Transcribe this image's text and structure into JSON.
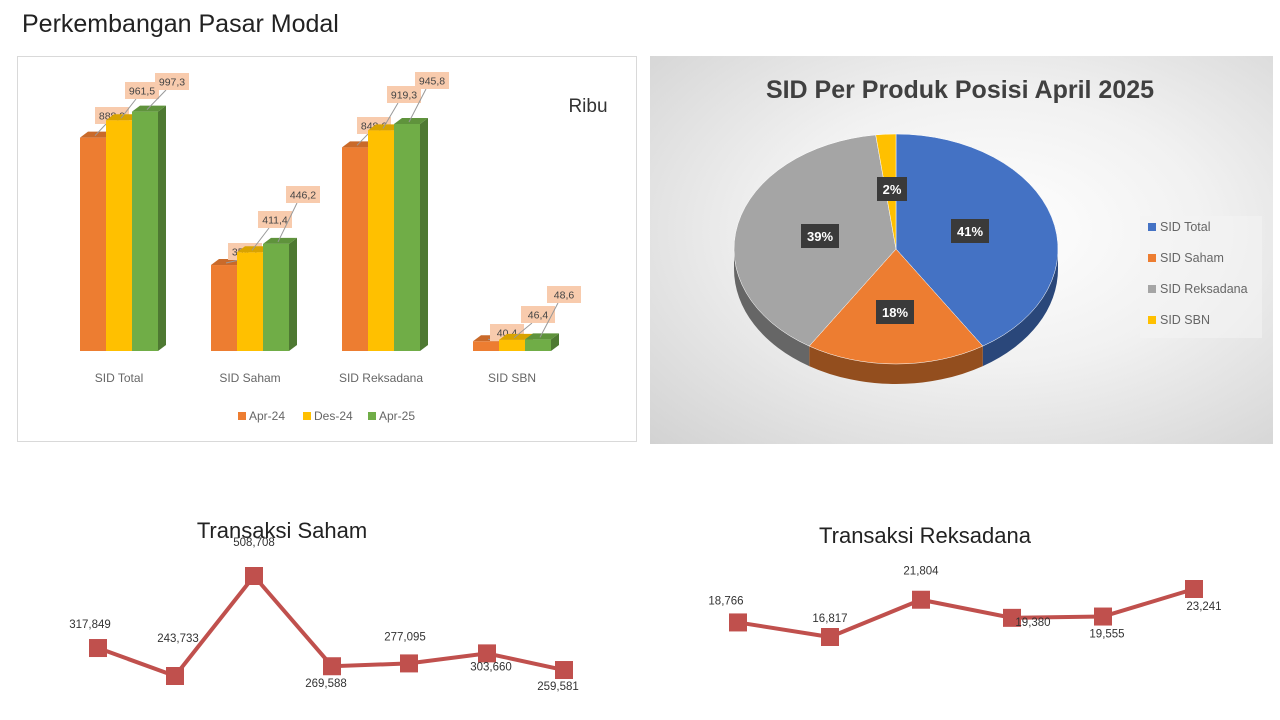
{
  "page": {
    "title": "Perkembangan Pasar Modal"
  },
  "chart_data": [
    {
      "type": "bar",
      "title": "",
      "unit_label": "Ribu",
      "categories": [
        "SID Total",
        "SID Saham",
        "SID Reksadana",
        "SID SBN"
      ],
      "series": [
        {
          "name": "Apr-24",
          "values": [
            888.9,
            358.2,
            848.6,
            40.4
          ],
          "labels": [
            "888,9",
            "358,2",
            "848,6",
            "40,4"
          ],
          "color": "#ED7D31"
        },
        {
          "name": "Des-24",
          "values": [
            961.5,
            411.4,
            919.3,
            46.4
          ],
          "labels": [
            "961,5",
            "411,4",
            "919,3",
            "46,4"
          ],
          "color": "#FFC000"
        },
        {
          "name": "Apr-25",
          "values": [
            997.3,
            446.2,
            945.8,
            48.6
          ],
          "labels": [
            "997,3",
            "446,2",
            "945,8",
            "48,6"
          ],
          "color": "#70AD47"
        }
      ],
      "ylim": [
        0,
        1000
      ],
      "legend": "bottom",
      "grid": false
    },
    {
      "type": "pie",
      "title": "SID Per Produk Posisi April 2025",
      "slices": [
        {
          "name": "SID Total",
          "value": 41,
          "label": "41%",
          "color": "#4472C4"
        },
        {
          "name": "SID Saham",
          "value": 18,
          "label": "18%",
          "color": "#ED7D31"
        },
        {
          "name": "SID Reksadana",
          "value": 39,
          "label": "39%",
          "color": "#A5A5A5"
        },
        {
          "name": "SID SBN",
          "value": 2,
          "label": "2%",
          "color": "#FFC000"
        }
      ],
      "legend": "right"
    },
    {
      "type": "line",
      "title": "Transaksi Saham",
      "values": [
        317849,
        243733,
        508708,
        269588,
        277095,
        303660,
        259581
      ],
      "labels": [
        "317,849",
        "243,733",
        "508,708",
        "269,588",
        "277,095",
        "303,660",
        "259,581"
      ],
      "color": "#C0504D",
      "grid": false
    },
    {
      "type": "line",
      "title": "Transaksi Reksadana",
      "values": [
        18766,
        16817,
        21804,
        19380,
        19555,
        23241
      ],
      "labels": [
        "18,766",
        "16,817",
        "21,804",
        "19,380",
        "19,555",
        "23,241"
      ],
      "color": "#C0504D",
      "grid": false
    }
  ]
}
